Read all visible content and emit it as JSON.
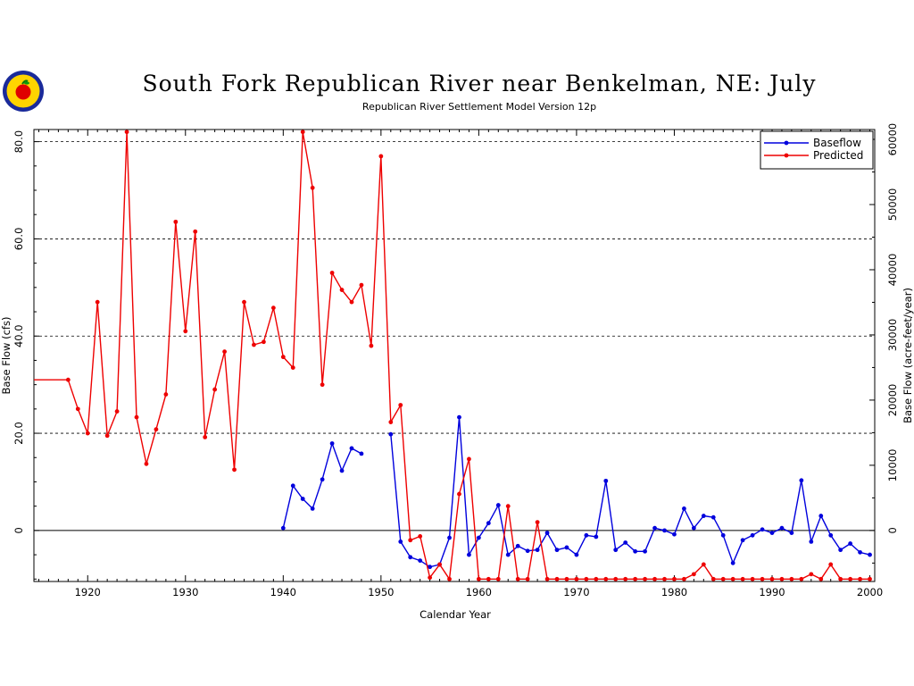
{
  "chart_data": {
    "type": "line",
    "title": "South Fork Republican River near Benkelman, NE: July",
    "subtitle": "Republican River Settlement Model Version 12p",
    "xlabel": "Calendar Year",
    "ylabel_left": "Base Flow (cfs)",
    "ylabel_right": "Base Flow (acre-feet/year)",
    "xlim": [
      1914.5,
      2000.5
    ],
    "ylim": [
      -10.5,
      82.5
    ],
    "x_ticks": [
      1920,
      1930,
      1940,
      1950,
      1960,
      1970,
      1980,
      1990,
      2000
    ],
    "y_ticks_left": [
      {
        "value": 0,
        "label": "0"
      },
      {
        "value": 20,
        "label": "20.0"
      },
      {
        "value": 40,
        "label": "40.0"
      },
      {
        "value": 60,
        "label": "60.0"
      },
      {
        "value": 80,
        "label": "80.0"
      }
    ],
    "y_ticks_right": [
      0,
      10000,
      20000,
      30000,
      40000,
      50000,
      60000
    ],
    "right_axis_factor": 745.6,
    "grid": "dashed horizontal at left-axis ticks",
    "legend_position": "top-right",
    "series": [
      {
        "name": "Baseflow",
        "color": "#0000dd",
        "x": [
          1940,
          1941,
          1942,
          1943,
          1944,
          1945,
          1946,
          1947,
          1948,
          null,
          1951,
          1952,
          1953,
          1954,
          1955,
          1956,
          1957,
          1958,
          1959,
          1960,
          1961,
          1962,
          1963,
          1964,
          1965,
          1966,
          1967,
          1968,
          1969,
          1970,
          1971,
          1972,
          1973,
          1974,
          1975,
          1976,
          1977,
          1978,
          1979,
          1980,
          1981,
          1982,
          1983,
          1984,
          1985,
          1986,
          1987,
          1988,
          1989,
          1990,
          1991,
          1992,
          1993,
          1994,
          1995,
          1996,
          1997,
          1998,
          1999,
          2000
        ],
        "values": [
          0.5,
          9.2,
          6.5,
          4.5,
          10.5,
          17.9,
          12.3,
          16.9,
          15.8,
          null,
          19.8,
          -2.3,
          -5.5,
          -6.2,
          -7.5,
          -7.0,
          -1.5,
          23.3,
          -5.0,
          -1.5,
          1.5,
          5.2,
          -5.0,
          -3.2,
          -4.2,
          -4.0,
          -0.5,
          -4.0,
          -3.5,
          -5.0,
          -1.0,
          -1.3,
          10.2,
          -4.0,
          -2.5,
          -4.3,
          -4.3,
          0.5,
          0.0,
          -0.8,
          4.5,
          0.5,
          3.0,
          2.7,
          -1.0,
          -6.7,
          -2.0,
          -1.0,
          0.2,
          -0.5,
          0.5,
          -0.5,
          10.3,
          -2.3,
          3.0,
          -1.0,
          -4.0,
          -2.7,
          -4.5,
          -5.0
        ]
      },
      {
        "name": "Predicted",
        "color": "#ee0000",
        "x": [
          1914.5,
          1918,
          1919,
          1920,
          1921,
          1922,
          1923,
          1924,
          1925,
          1926,
          1927,
          1928,
          1929,
          1930,
          1931,
          1932,
          1933,
          1934,
          1935,
          1936,
          1937,
          1938,
          1939,
          1940,
          1941,
          1942,
          1943,
          1944,
          1945,
          1946,
          1947,
          1948,
          1949,
          1950,
          1951,
          1952,
          1953,
          1954,
          1955,
          1956,
          1957,
          1958,
          1959,
          1960,
          1961,
          1962,
          1963,
          1964,
          1965,
          1966,
          1967,
          1968,
          1969,
          1970,
          1971,
          1972,
          1973,
          1974,
          1975,
          1976,
          1977,
          1978,
          1979,
          1980,
          1981,
          1982,
          1983,
          1984,
          1985,
          1986,
          1987,
          1988,
          1989,
          1990,
          1991,
          1992,
          1993,
          1994,
          1995,
          1996,
          1997,
          1998,
          1999,
          2000
        ],
        "values": [
          31.0,
          31.0,
          25.0,
          20.0,
          47.0,
          19.5,
          24.5,
          82.0,
          23.3,
          13.7,
          20.8,
          28.0,
          63.5,
          41.0,
          61.5,
          19.2,
          29.0,
          36.8,
          12.5,
          47.0,
          38.2,
          38.8,
          45.8,
          35.7,
          33.5,
          82.0,
          70.5,
          30.0,
          53.0,
          49.5,
          47.0,
          50.5,
          38.0,
          77.0,
          22.3,
          25.8,
          -2.0,
          -1.2,
          -9.7,
          -7.0,
          -10.0,
          7.5,
          14.7,
          -10.0,
          -10.0,
          -10.0,
          5.0,
          -10.0,
          -10.0,
          1.7,
          -10.0,
          -10.0,
          -10.0,
          -10.0,
          -10.0,
          -10.0,
          -10.0,
          -10.0,
          -10.0,
          -10.0,
          -10.0,
          -10.0,
          -10.0,
          -10.0,
          -10.0,
          -9.0,
          -7.0,
          -10.0,
          -10.0,
          -10.0,
          -10.0,
          -10.0,
          -10.0,
          -10.0,
          -10.0,
          -10.0,
          -10.0,
          -9.0,
          -10.0,
          -7.0,
          -10.0,
          -10.0,
          -10.0,
          -10.0
        ]
      }
    ]
  },
  "logo": {
    "icon": "apple-seal-logo"
  }
}
